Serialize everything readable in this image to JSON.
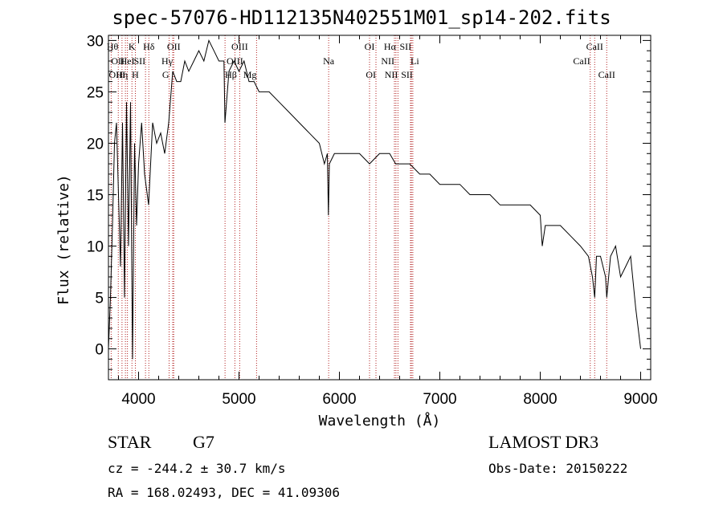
{
  "chart_data": {
    "type": "line",
    "title": "spec-57076-HD112135N402551M01_sp14-202.fits",
    "xlabel": "Wavelength (Å)",
    "ylabel": "Flux (relative)",
    "xlim": [
      3700,
      9100
    ],
    "ylim": [
      -3,
      30.5
    ],
    "xticks": [
      4000,
      5000,
      6000,
      7000,
      8000,
      9000
    ],
    "yticks": [
      0,
      5,
      10,
      15,
      20,
      25,
      30
    ],
    "series": [
      {
        "name": "spectrum",
        "x": [
          3700,
          3720,
          3740,
          3760,
          3780,
          3800,
          3820,
          3840,
          3860,
          3880,
          3900,
          3920,
          3940,
          3960,
          3980,
          4000,
          4030,
          4060,
          4100,
          4140,
          4180,
          4220,
          4260,
          4300,
          4340,
          4380,
          4420,
          4460,
          4500,
          4550,
          4600,
          4650,
          4700,
          4750,
          4800,
          4850,
          4860,
          4900,
          4950,
          5000,
          5050,
          5100,
          5150,
          5200,
          5300,
          5400,
          5500,
          5600,
          5700,
          5800,
          5850,
          5880,
          5890,
          5900,
          5950,
          6000,
          6100,
          6200,
          6300,
          6400,
          6500,
          6560,
          6600,
          6700,
          6800,
          6900,
          7000,
          7100,
          7200,
          7300,
          7400,
          7500,
          7600,
          7700,
          7800,
          7900,
          8000,
          8020,
          8050,
          8100,
          8200,
          8300,
          8400,
          8480,
          8500,
          8520,
          8542,
          8560,
          8600,
          8650,
          8662,
          8700,
          8750,
          8800,
          8850,
          8900,
          8950,
          9000
        ],
        "y": [
          0,
          5,
          12,
          20,
          22,
          15,
          8,
          22,
          5,
          24,
          10,
          24,
          -1,
          20,
          12,
          18,
          22,
          17,
          14,
          22,
          20,
          21,
          19,
          22,
          27,
          26,
          26,
          28,
          27,
          28,
          29,
          28,
          30,
          29,
          28,
          28,
          22,
          27,
          28,
          27,
          28,
          26,
          26,
          25,
          25,
          24,
          23,
          22,
          21,
          20,
          18,
          19,
          13,
          18,
          19,
          19,
          19,
          19,
          18,
          19,
          19,
          18,
          18,
          18,
          17,
          17,
          16,
          16,
          16,
          15,
          15,
          15,
          14,
          14,
          14,
          14,
          13,
          10,
          12,
          12,
          12,
          11,
          10,
          9,
          8,
          7,
          5,
          9,
          9,
          7,
          5,
          9,
          10,
          7,
          8,
          9,
          4,
          0
        ]
      }
    ],
    "lines": [
      {
        "label": "Hθ",
        "x": 3798,
        "row": 0,
        "anchor": "end"
      },
      {
        "label": "K",
        "x": 3934,
        "row": 0,
        "anchor": "middle"
      },
      {
        "label": "Hδ",
        "x": 4102,
        "row": 0,
        "anchor": "middle"
      },
      {
        "label": "OII",
        "x": 4350,
        "row": 0,
        "anchor": "middle"
      },
      {
        "label": "OIII",
        "x": 5007,
        "row": 0,
        "anchor": "middle"
      },
      {
        "label": "OI",
        "x": 6300,
        "row": 0,
        "anchor": "middle"
      },
      {
        "label": "Hα",
        "x": 6563,
        "row": 0,
        "anchor": "end"
      },
      {
        "label": "SII",
        "x": 6717,
        "row": 0,
        "anchor": "end"
      },
      {
        "label": "CaII",
        "x": 8542,
        "row": 0,
        "anchor": "middle"
      },
      {
        "label": "OII",
        "x": 3727,
        "row": 1,
        "anchor": "start"
      },
      {
        "label": "HeI",
        "x": 3889,
        "row": 1,
        "anchor": "middle"
      },
      {
        "label": "SII",
        "x": 4069,
        "row": 1,
        "anchor": "end"
      },
      {
        "label": "Hγ",
        "x": 4340,
        "row": 1,
        "anchor": "end"
      },
      {
        "label": "OIII",
        "x": 4959,
        "row": 1,
        "anchor": "middle"
      },
      {
        "label": "Na",
        "x": 5893,
        "row": 1,
        "anchor": "middle"
      },
      {
        "label": "NII",
        "x": 6548,
        "row": 1,
        "anchor": "end"
      },
      {
        "label": "Li",
        "x": 6708,
        "row": 1,
        "anchor": "start"
      },
      {
        "label": "CaII",
        "x": 8498,
        "row": 1,
        "anchor": "end"
      },
      {
        "label": "OIII",
        "x": 3869,
        "row": 2,
        "anchor": "end"
      },
      {
        "label": "Hη",
        "x": 3835,
        "row": 2,
        "anchor": "middle"
      },
      {
        "label": "H",
        "x": 3968,
        "row": 2,
        "anchor": "middle"
      },
      {
        "label": "G",
        "x": 4304,
        "row": 2,
        "anchor": "end"
      },
      {
        "label": "Hβ",
        "x": 4861,
        "row": 2,
        "anchor": "start"
      },
      {
        "label": "Mg",
        "x": 5175,
        "row": 2,
        "anchor": "end"
      },
      {
        "label": "OI",
        "x": 6364,
        "row": 2,
        "anchor": "end"
      },
      {
        "label": "NII",
        "x": 6583,
        "row": 2,
        "anchor": "end"
      },
      {
        "label": "SII",
        "x": 6731,
        "row": 2,
        "anchor": "end"
      },
      {
        "label": "CaII",
        "x": 8662,
        "row": 2,
        "anchor": "middle"
      }
    ]
  },
  "info": {
    "object_class": "STAR",
    "subclass": "G7",
    "survey": "LAMOST DR3",
    "cz": "cz = -244.2 ± 30.7 km/s",
    "obs_date": "Obs-Date: 20150222",
    "coords": "RA = 168.02493, DEC =  41.09306"
  },
  "colors": {
    "line_marker": "#b22222",
    "spectrum": "#000000"
  }
}
